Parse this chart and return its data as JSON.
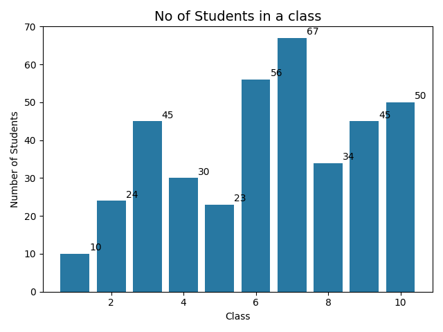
{
  "x": [
    1,
    2,
    3,
    4,
    5,
    6,
    7,
    8,
    9,
    10
  ],
  "values": [
    10,
    24,
    45,
    30,
    23,
    56,
    67,
    34,
    45,
    50
  ],
  "bar_color": "#2878a2",
  "title": "No of Students in a class",
  "xlabel": "Class",
  "ylabel": "Number of Students",
  "ylim": [
    0,
    70
  ],
  "title_fontsize": 14,
  "label_fontsize": 10,
  "figsize": [
    6.4,
    4.8
  ],
  "dpi": 100
}
